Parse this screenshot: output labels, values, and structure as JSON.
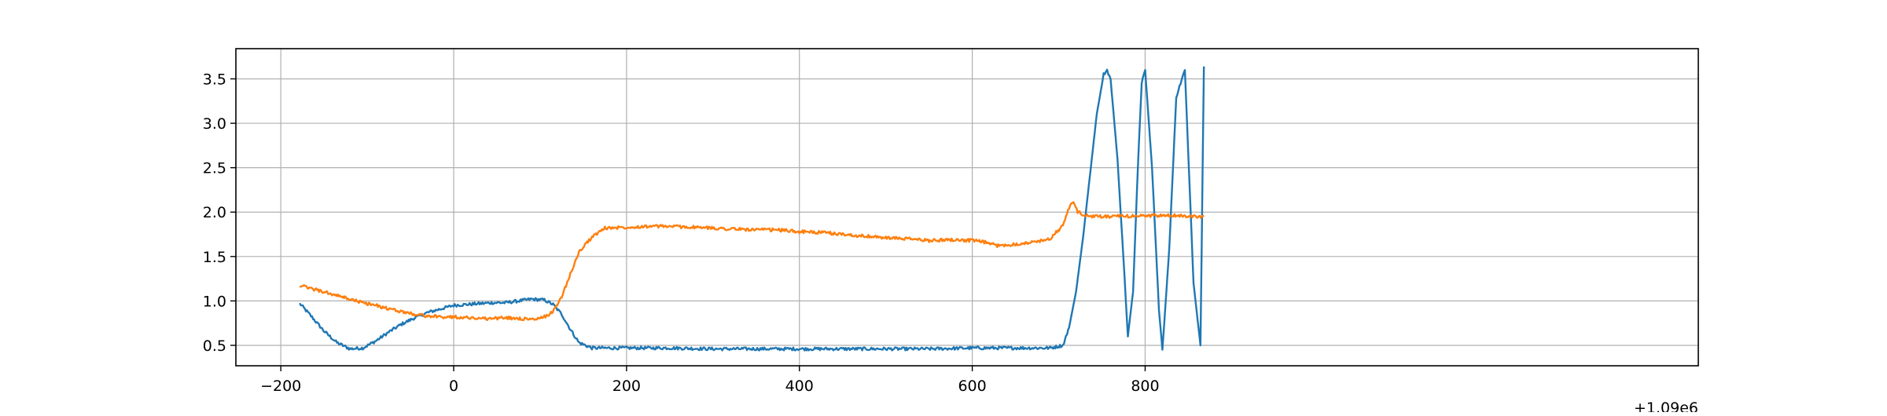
{
  "chart_data": {
    "type": "line",
    "title": "",
    "xlabel": "",
    "ylabel": "",
    "x_offset_label": "+1.09e6",
    "xlim": [
      -252,
      1440
    ],
    "ylim": [
      0.27,
      3.84
    ],
    "x_ticks": [
      -200,
      0,
      200,
      400,
      600,
      800
    ],
    "x_tick_labels": [
      "−200",
      "0",
      "200",
      "400",
      "600",
      "800"
    ],
    "y_ticks": [
      0.5,
      1.0,
      1.5,
      2.0,
      2.5,
      3.0,
      3.5
    ],
    "y_tick_labels": [
      "0.5",
      "1.0",
      "1.5",
      "2.0",
      "2.5",
      "3.0",
      "3.5"
    ],
    "grid": true,
    "legend": "none",
    "series": [
      {
        "color": "#1f77b4",
        "x": [
          -178,
          -165,
          -150,
          -135,
          -120,
          -105,
          -90,
          -75,
          -60,
          -45,
          -30,
          -15,
          0,
          15,
          30,
          45,
          60,
          75,
          90,
          105,
          115,
          125,
          135,
          145,
          160,
          180,
          200,
          250,
          300,
          350,
          400,
          450,
          500,
          550,
          600,
          650,
          690,
          705,
          712,
          720,
          728,
          736,
          744,
          752,
          756,
          760,
          768,
          776,
          780,
          786,
          792,
          796,
          800,
          808,
          816,
          820,
          828,
          836,
          846,
          856,
          864,
          868
        ],
        "y": [
          0.97,
          0.83,
          0.66,
          0.53,
          0.46,
          0.47,
          0.55,
          0.65,
          0.74,
          0.81,
          0.87,
          0.91,
          0.95,
          0.96,
          0.97,
          0.98,
          0.98,
          1.0,
          1.02,
          1.01,
          0.96,
          0.85,
          0.68,
          0.53,
          0.47,
          0.47,
          0.47,
          0.47,
          0.46,
          0.46,
          0.46,
          0.46,
          0.46,
          0.46,
          0.47,
          0.47,
          0.47,
          0.5,
          0.7,
          1.1,
          1.7,
          2.4,
          3.1,
          3.55,
          3.6,
          3.5,
          2.6,
          1.3,
          0.6,
          1.1,
          2.6,
          3.45,
          3.6,
          2.5,
          0.9,
          0.45,
          1.6,
          3.3,
          3.6,
          1.2,
          0.5,
          3.64
        ]
      },
      {
        "color": "#ff7f0e",
        "x": [
          -178,
          -165,
          -150,
          -135,
          -120,
          -105,
          -90,
          -75,
          -60,
          -45,
          -30,
          -15,
          0,
          20,
          40,
          60,
          80,
          95,
          105,
          115,
          125,
          135,
          145,
          160,
          175,
          200,
          225,
          250,
          275,
          300,
          325,
          350,
          375,
          400,
          425,
          450,
          475,
          500,
          525,
          550,
          575,
          600,
          615,
          630,
          650,
          670,
          690,
          705,
          712,
          716,
          722,
          735,
          760,
          800,
          840,
          868
        ],
        "y": [
          1.17,
          1.14,
          1.1,
          1.06,
          1.02,
          0.98,
          0.95,
          0.91,
          0.88,
          0.85,
          0.83,
          0.82,
          0.82,
          0.81,
          0.8,
          0.81,
          0.8,
          0.79,
          0.82,
          0.88,
          1.05,
          1.3,
          1.55,
          1.72,
          1.82,
          1.83,
          1.84,
          1.84,
          1.83,
          1.82,
          1.81,
          1.8,
          1.8,
          1.78,
          1.77,
          1.75,
          1.73,
          1.71,
          1.7,
          1.68,
          1.69,
          1.68,
          1.66,
          1.62,
          1.64,
          1.66,
          1.7,
          1.85,
          2.05,
          2.12,
          2.0,
          1.95,
          1.95,
          1.96,
          1.96,
          1.95
        ]
      }
    ]
  }
}
